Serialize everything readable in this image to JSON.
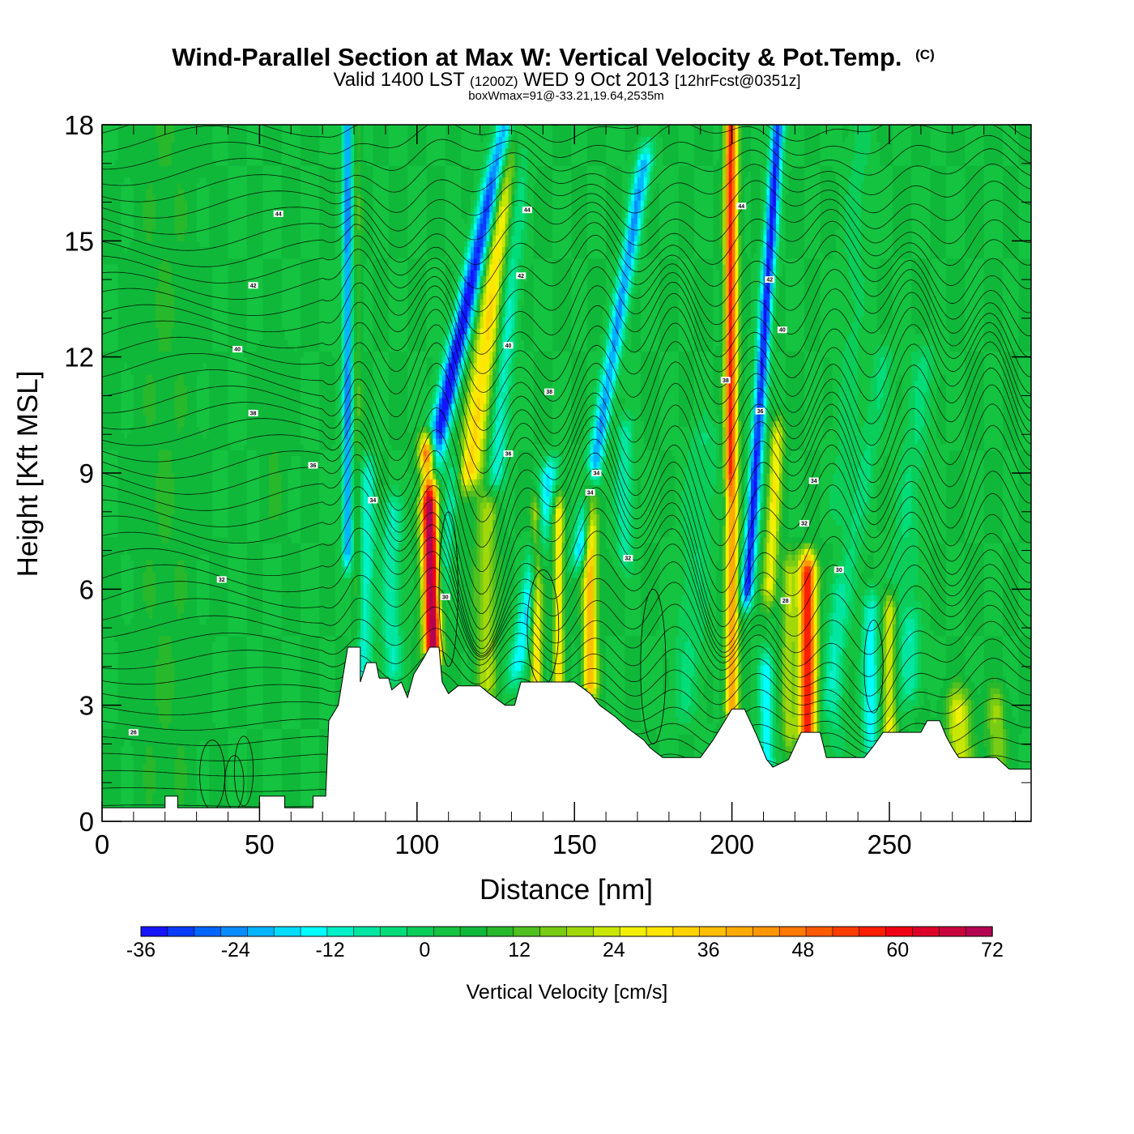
{
  "chart_data": {
    "type": "heatmap",
    "title": "Wind-Parallel Section at Max W: Vertical Velocity & Pot.Temp.",
    "copyright_mark": "(C)",
    "subtitle_parts": [
      "Valid 1400 LST",
      "(1200Z)",
      "WED 9 Oct 2013",
      "[12hrFcst@0351z]"
    ],
    "subtitle2": "boxWmax=91@-33.21,19.64,2535m",
    "xlabel": "Distance [nm]",
    "ylabel": "Height [Kft MSL]",
    "xlim": [
      0,
      295
    ],
    "ylim": [
      0,
      18
    ],
    "xticks": [
      0,
      50,
      100,
      150,
      200,
      250
    ],
    "yticks": [
      0,
      3,
      6,
      9,
      12,
      15,
      18
    ],
    "colorbar": {
      "title": "Vertical Velocity [cm/s]",
      "ticks": [
        -36,
        -24,
        -12,
        0,
        12,
        24,
        36,
        48,
        60,
        72
      ],
      "levels": [
        -36,
        -33,
        -30,
        -27,
        -24,
        -21,
        -18,
        -15,
        -12,
        -9,
        -6,
        -3,
        0,
        3,
        6,
        9,
        12,
        15,
        18,
        21,
        24,
        27,
        30,
        33,
        36,
        39,
        42,
        45,
        48,
        51,
        54,
        57,
        60,
        63,
        66,
        69,
        72
      ],
      "colors": [
        "#1414ff",
        "#0a3cff",
        "#0064ff",
        "#0a8cff",
        "#00b4ff",
        "#00dcff",
        "#00ffff",
        "#00f0c8",
        "#00e6a0",
        "#00dc78",
        "#0acd5a",
        "#14c340",
        "#10b83a",
        "#28b82c",
        "#50c020",
        "#78cc14",
        "#a0d80a",
        "#c8e600",
        "#f0f000",
        "#ffe600",
        "#ffd200",
        "#ffbe00",
        "#ffaa00",
        "#ff9600",
        "#ff7800",
        "#ff5a00",
        "#ff3c00",
        "#ff1e00",
        "#f00014",
        "#dc0028",
        "#c8003c",
        "#b40050"
      ]
    },
    "terrain": [
      [
        0,
        0.35
      ],
      [
        20,
        0.35
      ],
      [
        20,
        0.65
      ],
      [
        24,
        0.65
      ],
      [
        24,
        0.35
      ],
      [
        50,
        0.35
      ],
      [
        50,
        0.65
      ],
      [
        58,
        0.65
      ],
      [
        58,
        0.35
      ],
      [
        67,
        0.35
      ],
      [
        67,
        0.65
      ],
      [
        71,
        0.65
      ],
      [
        72,
        2.6
      ],
      [
        75,
        3.0
      ],
      [
        78,
        4.5
      ],
      [
        82,
        4.5
      ],
      [
        82,
        3.6
      ],
      [
        84,
        4.1
      ],
      [
        87,
        4.1
      ],
      [
        88,
        3.7
      ],
      [
        91,
        3.7
      ],
      [
        92,
        3.4
      ],
      [
        95,
        3.6
      ],
      [
        97,
        3.2
      ],
      [
        99,
        3.8
      ],
      [
        102,
        4.2
      ],
      [
        104,
        4.5
      ],
      [
        107,
        4.5
      ],
      [
        108,
        3.6
      ],
      [
        110,
        3.3
      ],
      [
        113,
        3.5
      ],
      [
        120,
        3.5
      ],
      [
        123,
        3.3
      ],
      [
        128,
        3.0
      ],
      [
        131,
        3.0
      ],
      [
        133,
        3.6
      ],
      [
        150,
        3.6
      ],
      [
        155,
        3.3
      ],
      [
        158,
        3.0
      ],
      [
        163,
        2.7
      ],
      [
        167,
        2.4
      ],
      [
        172,
        2.1
      ],
      [
        174,
        1.9
      ],
      [
        178,
        1.65
      ],
      [
        190,
        1.65
      ],
      [
        194,
        2.1
      ],
      [
        197,
        2.5
      ],
      [
        200,
        2.9
      ],
      [
        204,
        2.9
      ],
      [
        208,
        2.2
      ],
      [
        211,
        1.6
      ],
      [
        213,
        1.4
      ],
      [
        218,
        1.6
      ],
      [
        222,
        2.3
      ],
      [
        228,
        2.3
      ],
      [
        230,
        1.65
      ],
      [
        242,
        1.65
      ],
      [
        245,
        1.95
      ],
      [
        248,
        2.3
      ],
      [
        260,
        2.3
      ],
      [
        262,
        2.6
      ],
      [
        266,
        2.6
      ],
      [
        268,
        2.2
      ],
      [
        270,
        1.9
      ],
      [
        272,
        1.65
      ],
      [
        284,
        1.65
      ],
      [
        288,
        1.35
      ],
      [
        295,
        1.35
      ]
    ],
    "contour_labels": [
      "44",
      "42",
      "40",
      "38",
      "36",
      "34",
      "32",
      "30",
      "28",
      "26"
    ],
    "annotations": [
      "44",
      "42",
      "40",
      "38",
      "36",
      "34",
      "32",
      "30",
      "28",
      "26"
    ]
  }
}
